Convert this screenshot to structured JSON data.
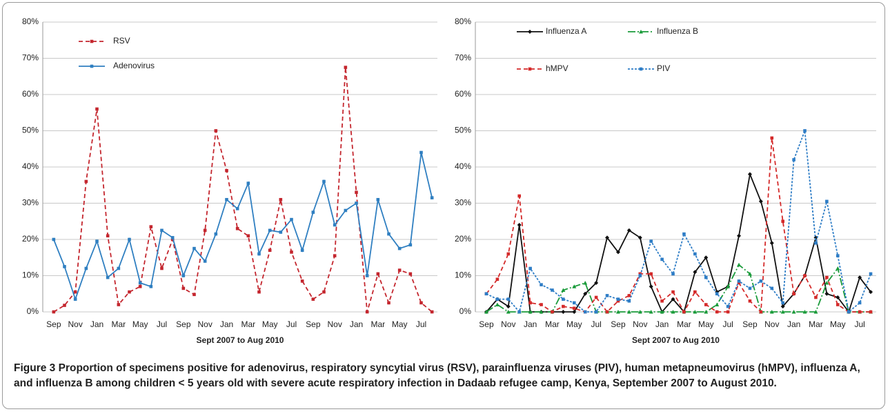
{
  "chart_data": [
    {
      "type": "line",
      "xlabel": "Sept 2007 to Aug 2010",
      "categories": [
        "Sep",
        null,
        "Nov",
        null,
        "Jan",
        null,
        "Mar",
        null,
        "May",
        null,
        "Jul",
        null,
        "Sep",
        null,
        "Nov",
        null,
        "Jan",
        null,
        "Mar",
        null,
        "May",
        null,
        "Jul",
        null,
        "Sep",
        null,
        "Nov",
        null,
        "Jan",
        null,
        "Mar",
        null,
        "May",
        null,
        "Jul",
        null
      ],
      "ylim": [
        0,
        80
      ],
      "yticks": [
        {
          "value": 0,
          "label": "0%"
        },
        {
          "value": 10,
          "label": "10%"
        },
        {
          "value": 20,
          "label": "20%"
        },
        {
          "value": 30,
          "label": "30%"
        },
        {
          "value": 40,
          "label": "40%"
        },
        {
          "value": 50,
          "label": "50%"
        },
        {
          "value": 60,
          "label": "60%"
        },
        {
          "value": 70,
          "label": "70%"
        },
        {
          "value": 80,
          "label": "80%"
        }
      ],
      "grid": true,
      "legend": "upper left",
      "series": [
        {
          "name": "RSV",
          "color": "#c4262e",
          "dash": "dashed",
          "marker": "square",
          "values": [
            0,
            1.8,
            5.5,
            36,
            56,
            21,
            2,
            5.5,
            7,
            23.5,
            12,
            20,
            6.5,
            4.8,
            22.5,
            50,
            39,
            23,
            21,
            5.5,
            17,
            31,
            16.5,
            8.5,
            3.5,
            5.5,
            15.5,
            67.5,
            33,
            0,
            10.5,
            2.5,
            11.5,
            10.5,
            2.5,
            0
          ]
        },
        {
          "name": "Adenovirus",
          "color": "#2f7fc1",
          "dash": "solid",
          "marker": "square",
          "values": [
            20,
            12.5,
            3.5,
            12,
            19.5,
            9.5,
            12,
            20,
            8,
            7,
            22.5,
            20.5,
            10,
            17.5,
            14,
            21.5,
            31,
            28.5,
            35.5,
            16,
            22.5,
            22,
            25.5,
            17,
            27.5,
            36,
            24,
            28,
            30,
            10,
            31,
            21.5,
            17.5,
            18.5,
            44,
            31.5
          ]
        }
      ]
    },
    {
      "type": "line",
      "xlabel": "Sept 2007 to Aug 2010",
      "categories": [
        "Sep",
        null,
        "Nov",
        null,
        "Jan",
        null,
        "Mar",
        null,
        "May",
        null,
        "Jul",
        null,
        "Sep",
        null,
        "Nov",
        null,
        "Jan",
        null,
        "Mar",
        null,
        "May",
        null,
        "Jul",
        null,
        "Sep",
        null,
        "Nov",
        null,
        "Jan",
        null,
        "Mar",
        null,
        "May",
        null,
        "Jul",
        null
      ],
      "ylim": [
        0,
        80
      ],
      "yticks": [
        {
          "value": 0,
          "label": "0%"
        },
        {
          "value": 10,
          "label": "10%"
        },
        {
          "value": 20,
          "label": "20%"
        },
        {
          "value": 30,
          "label": "30%"
        },
        {
          "value": 40,
          "label": "40%"
        },
        {
          "value": 50,
          "label": "50%"
        },
        {
          "value": 60,
          "label": "60%"
        },
        {
          "value": 70,
          "label": "70%"
        },
        {
          "value": 80,
          "label": "80%"
        }
      ],
      "grid": true,
      "legend": "upper left",
      "series": [
        {
          "name": "Influenza A",
          "color": "#111111",
          "dash": "solid",
          "marker": "diamond",
          "values": [
            0,
            3.5,
            1.5,
            24,
            0,
            0,
            0,
            0,
            0,
            5,
            8,
            20.5,
            16.5,
            22.5,
            20.5,
            7,
            0,
            3.5,
            0,
            11,
            15,
            5.5,
            7,
            21,
            38,
            30.5,
            19,
            1.5,
            5,
            10,
            20.5,
            5,
            4,
            0,
            9.5,
            5.5
          ]
        },
        {
          "name": "Influenza B",
          "color": "#1a9b3a",
          "dash": "dashdot",
          "marker": "triangle",
          "values": [
            0,
            2,
            0,
            0,
            0,
            0,
            0,
            6,
            7,
            8,
            0,
            0,
            0,
            0,
            0,
            0,
            0,
            0,
            0,
            0,
            0,
            2,
            7,
            13,
            10.5,
            0,
            0,
            0,
            0,
            0,
            0,
            8,
            12,
            0,
            0,
            0
          ]
        },
        {
          "name": "hMPV",
          "color": "#d42a2a",
          "dash": "dashed",
          "marker": "square",
          "values": [
            5,
            9,
            16,
            32,
            2.5,
            2,
            0,
            1.5,
            1,
            0,
            4,
            0,
            3,
            4.5,
            10.5,
            10.5,
            3,
            5.5,
            0,
            5.5,
            2,
            0,
            0,
            8,
            3,
            0,
            48,
            25,
            5,
            10,
            4,
            9.5,
            2,
            0,
            0,
            0
          ]
        },
        {
          "name": "PIV",
          "color": "#2e7dc6",
          "dash": "dotted",
          "marker": "square",
          "values": [
            5,
            3.5,
            3.5,
            0,
            12,
            7.5,
            6,
            3.5,
            2.5,
            0,
            0,
            4.5,
            3.5,
            3,
            10,
            19.5,
            14.5,
            10.5,
            21.5,
            16,
            9.5,
            5,
            1.5,
            8.5,
            6.5,
            8.5,
            6.5,
            2.5,
            42,
            50,
            19,
            30.5,
            15.5,
            0,
            2.5,
            10.5
          ]
        }
      ]
    }
  ],
  "caption": {
    "label": "Figure 3",
    "text": "Proportion of specimens positive for adenovirus, respiratory syncytial virus (RSV), parainfluenza viruses (PIV), human metapneumovirus (hMPV), influenza A, and influenza B among children < 5 years old with severe acute respiratory infection in Dadaab refugee camp, Kenya, September 2007 to August 2010."
  }
}
